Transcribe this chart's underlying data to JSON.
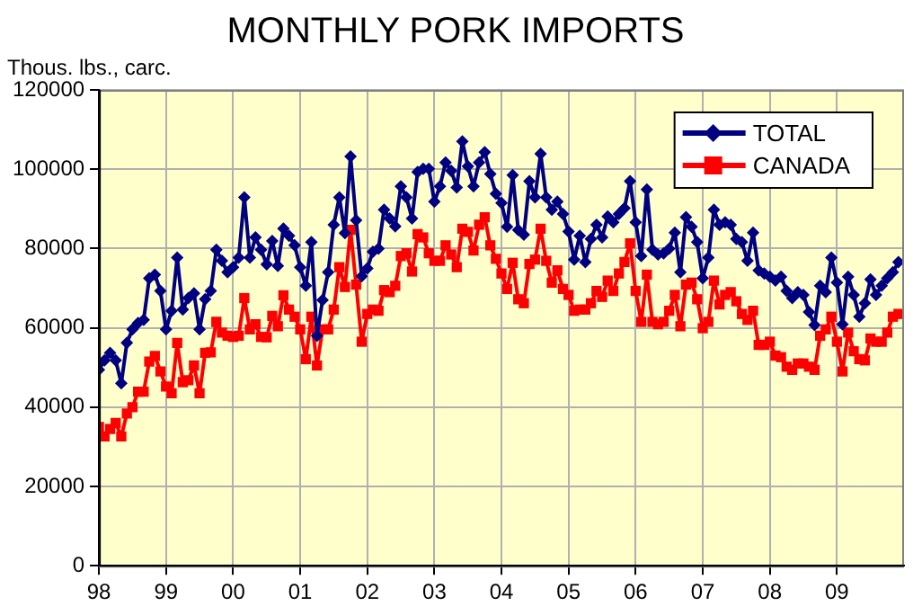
{
  "chart_data": {
    "type": "line",
    "title": "MONTHLY PORK IMPORTS",
    "ylabel": "Thous. lbs., carc.",
    "x": [
      "1998-01",
      "1998-02",
      "1998-03",
      "1998-04",
      "1998-05",
      "1998-06",
      "1998-07",
      "1998-08",
      "1998-09",
      "1998-10",
      "1998-11",
      "1998-12",
      "1999-01",
      "1999-02",
      "1999-03",
      "1999-04",
      "1999-05",
      "1999-06",
      "1999-07",
      "1999-08",
      "1999-09",
      "1999-10",
      "1999-11",
      "1999-12",
      "2000-01",
      "2000-02",
      "2000-03",
      "2000-04",
      "2000-05",
      "2000-06",
      "2000-07",
      "2000-08",
      "2000-09",
      "2000-10",
      "2000-11",
      "2000-12",
      "2001-01",
      "2001-02",
      "2001-03",
      "2001-04",
      "2001-05",
      "2001-06",
      "2001-07",
      "2001-08",
      "2001-09",
      "2001-10",
      "2001-11",
      "2001-12",
      "2002-01",
      "2002-02",
      "2002-03",
      "2002-04",
      "2002-05",
      "2002-06",
      "2002-07",
      "2002-08",
      "2002-09",
      "2002-10",
      "2002-11",
      "2002-12",
      "2003-01",
      "2003-02",
      "2003-03",
      "2003-04",
      "2003-05",
      "2003-06",
      "2003-07",
      "2003-08",
      "2003-09",
      "2003-10",
      "2003-11",
      "2003-12",
      "2004-01",
      "2004-02",
      "2004-03",
      "2004-04",
      "2004-05",
      "2004-06",
      "2004-07",
      "2004-08",
      "2004-09",
      "2004-10",
      "2004-11",
      "2004-12",
      "2005-01",
      "2005-02",
      "2005-03",
      "2005-04",
      "2005-05",
      "2005-06",
      "2005-07",
      "2005-08",
      "2005-09",
      "2005-10",
      "2005-11",
      "2005-12",
      "2006-01",
      "2006-02",
      "2006-03",
      "2006-04",
      "2006-05",
      "2006-06",
      "2006-07",
      "2006-08",
      "2006-09",
      "2006-10",
      "2006-11",
      "2006-12",
      "2007-01",
      "2007-02",
      "2007-03",
      "2007-04",
      "2007-05",
      "2007-06",
      "2007-07",
      "2007-08",
      "2007-09",
      "2007-10",
      "2007-11",
      "2007-12",
      "2008-01",
      "2008-02",
      "2008-03",
      "2008-04",
      "2008-05",
      "2008-06",
      "2008-07",
      "2008-08",
      "2008-09",
      "2008-10",
      "2008-11",
      "2008-12",
      "2009-01",
      "2009-02",
      "2009-03",
      "2009-04",
      "2009-05",
      "2009-06",
      "2009-07",
      "2009-08",
      "2009-09",
      "2009-10",
      "2009-11",
      "2009-12"
    ],
    "series": [
      {
        "name": "TOTAL",
        "color": "#000080",
        "marker": "diamond",
        "values": [
          49400,
          51800,
          53700,
          51800,
          46000,
          56200,
          59600,
          61200,
          62000,
          72500,
          73400,
          69300,
          59600,
          64300,
          77700,
          64600,
          67500,
          68700,
          59600,
          67200,
          69300,
          79700,
          76900,
          74000,
          75300,
          77700,
          92900,
          77700,
          82800,
          79700,
          76000,
          81900,
          75600,
          85000,
          83200,
          80800,
          75300,
          70600,
          81600,
          58000,
          67000,
          74000,
          86000,
          92900,
          83900,
          103200,
          87100,
          73000,
          75000,
          79200,
          80000,
          89800,
          87600,
          85600,
          95700,
          92900,
          87600,
          99300,
          100100,
          100100,
          91800,
          95700,
          101700,
          99600,
          95400,
          107000,
          100700,
          95700,
          101700,
          104300,
          98800,
          93800,
          91500,
          85500,
          98500,
          84700,
          83500,
          97000,
          92900,
          103900,
          92900,
          89800,
          91800,
          88700,
          84300,
          77200,
          83200,
          76600,
          82400,
          86000,
          82800,
          88100,
          86600,
          88700,
          90200,
          97000,
          86600,
          78100,
          94900,
          79700,
          78500,
          78800,
          80000,
          84000,
          74000,
          87900,
          85500,
          81600,
          72500,
          77700,
          89800,
          86000,
          86600,
          86000,
          82400,
          81600,
          76900,
          84000,
          74500,
          73700,
          72900,
          71900,
          72900,
          69300,
          67500,
          69000,
          68300,
          64000,
          60700,
          70600,
          69000,
          77700,
          71400,
          60900,
          72900,
          68300,
          62800,
          66200,
          72200,
          68300,
          70600,
          72500,
          74000,
          76600
        ]
      },
      {
        "name": "CANADA",
        "color": "#ff0000",
        "marker": "square",
        "values": [
          35000,
          32600,
          34500,
          36000,
          32600,
          38400,
          40000,
          43900,
          43900,
          51500,
          52900,
          49000,
          45200,
          43500,
          56200,
          46300,
          46800,
          50500,
          43500,
          53700,
          53800,
          61500,
          58800,
          58000,
          57700,
          58000,
          67500,
          59600,
          60900,
          57700,
          57600,
          63000,
          60400,
          68200,
          64600,
          62800,
          59600,
          52100,
          62800,
          50500,
          59600,
          59600,
          64600,
          75300,
          70300,
          84700,
          70900,
          56500,
          63500,
          64600,
          64300,
          69500,
          69000,
          70600,
          78100,
          78800,
          74200,
          83600,
          82800,
          78800,
          76900,
          76900,
          80800,
          78500,
          75300,
          85000,
          84200,
          79500,
          86000,
          87900,
          80800,
          77400,
          73700,
          69800,
          76400,
          67200,
          66200,
          76100,
          77200,
          85000,
          76900,
          71400,
          74500,
          69800,
          68300,
          64300,
          64600,
          64600,
          66200,
          69300,
          67800,
          71900,
          69300,
          73700,
          76600,
          81300,
          69300,
          61500,
          73400,
          61500,
          60900,
          61500,
          64300,
          68300,
          60400,
          70900,
          71400,
          67200,
          59900,
          61500,
          71900,
          65900,
          68300,
          69000,
          66700,
          63500,
          62000,
          64300,
          55700,
          55700,
          56500,
          53000,
          52600,
          50200,
          49400,
          51000,
          51000,
          50200,
          49400,
          58000,
          59600,
          62800,
          56500,
          49000,
          58800,
          54100,
          52100,
          51800,
          57300,
          56500,
          56500,
          58800,
          62800,
          63500
        ]
      }
    ],
    "xlim": [
      "1998-01",
      "2010-01"
    ],
    "xticks": [
      {
        "value": "1998-01",
        "label": "98"
      },
      {
        "value": "1999-01",
        "label": "99"
      },
      {
        "value": "2000-01",
        "label": "00"
      },
      {
        "value": "2001-01",
        "label": "01"
      },
      {
        "value": "2002-01",
        "label": "02"
      },
      {
        "value": "2003-01",
        "label": "03"
      },
      {
        "value": "2004-01",
        "label": "04"
      },
      {
        "value": "2005-01",
        "label": "05"
      },
      {
        "value": "2006-01",
        "label": "06"
      },
      {
        "value": "2007-01",
        "label": "07"
      },
      {
        "value": "2008-01",
        "label": "08"
      },
      {
        "value": "2009-01",
        "label": "09"
      }
    ],
    "ylim": [
      0,
      120000
    ],
    "yticks": [
      0,
      20000,
      40000,
      60000,
      80000,
      100000,
      120000
    ],
    "grid": true,
    "legend": "top right"
  }
}
